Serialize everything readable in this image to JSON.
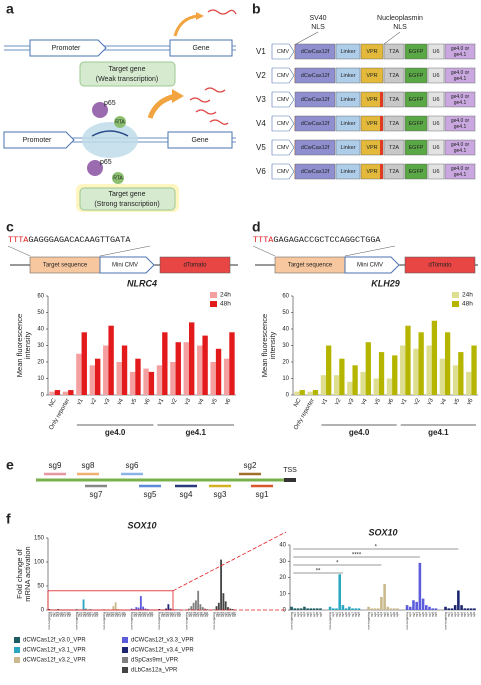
{
  "panel_labels": [
    "a",
    "b",
    "c",
    "d",
    "e",
    "f"
  ],
  "panel_a": {
    "weak": {
      "promoter": "Promoter",
      "gene": "Gene",
      "label": [
        "Target gene",
        "(Weak transcription)"
      ]
    },
    "strong": {
      "promoter": "Promoter",
      "gene": "Gene",
      "p65": "p65",
      "rta": "RTA",
      "label": [
        "Target gene",
        "(Strong transcription)"
      ]
    }
  },
  "panel_b": {
    "nls_1": [
      "SV40",
      "NLS"
    ],
    "nls_2": [
      "Nucleoplasmin",
      "NLS"
    ],
    "parts": [
      "CMV",
      "dCwCas12f",
      "Linker",
      "VPR",
      "T2A",
      "EGFP",
      "U6"
    ],
    "guide": [
      "ge4.0 or",
      "ge4.1"
    ],
    "rows": [
      "V1",
      "V2",
      "V3",
      "V4",
      "V5",
      "V6"
    ]
  },
  "panel_c": {
    "pam": "TTTA",
    "sequence": "GAGGGAGACACAAGTTGATA",
    "construct": [
      "Target sequence",
      "Mini CMV",
      "dTomato"
    ]
  },
  "panel_d": {
    "pam": "TTTA",
    "sequence": "GAGAGACCGCTCCAGGCTGGA",
    "construct": [
      "Target sequence",
      "Mini CMV",
      "dTomato"
    ]
  },
  "panel_e": {
    "guides": [
      {
        "label": "sg9",
        "color": "#e898a0"
      },
      {
        "label": "sg8",
        "color": "#f0b070"
      },
      {
        "label": "sg6",
        "color": "#8ab4e8"
      },
      {
        "label": "sg2",
        "color": "#a0702a"
      },
      {
        "label": "sg7",
        "color": "#888888"
      },
      {
        "label": "sg5",
        "color": "#5b8bd6"
      },
      {
        "label": "sg4",
        "color": "#2a3a7a"
      },
      {
        "label": "sg3",
        "color": "#d4b020"
      },
      {
        "label": "sg1",
        "color": "#d9582a"
      }
    ],
    "tss": "TSS"
  },
  "chart_data": [
    {
      "type": "bar",
      "grouping": "by-category",
      "title": "NLRC4",
      "y_label": [
        "Mean fluorescence",
        "intensity"
      ],
      "categories": [
        "NC",
        "Only reporter",
        "v1",
        "v2",
        "v3",
        "v4",
        "v5",
        "v6",
        "v1",
        "v2",
        "v3",
        "v4",
        "v5",
        "v6"
      ],
      "groups": [
        "ge4.0",
        "ge4.1"
      ],
      "series": [
        {
          "name": "24h",
          "color": "#f4a0a0",
          "values": [
            2,
            2,
            25,
            18,
            30,
            20,
            14,
            16,
            18,
            20,
            32,
            30,
            20,
            22
          ]
        },
        {
          "name": "48h",
          "color": "#e31a1c",
          "values": [
            3,
            3,
            38,
            22,
            42,
            30,
            22,
            14,
            38,
            32,
            44,
            36,
            28,
            38
          ]
        }
      ],
      "ylim": [
        0,
        60
      ],
      "yticks": [
        0,
        10,
        20,
        30,
        40,
        50,
        60
      ],
      "legend": "upper right"
    },
    {
      "type": "bar",
      "grouping": "by-category",
      "title": "KLH29",
      "y_label": [
        "Mean fluorescence",
        "intensity"
      ],
      "categories": [
        "NC",
        "Only reporter",
        "v1",
        "v2",
        "v3",
        "v4",
        "v5",
        "v6",
        "v1",
        "v2",
        "v3",
        "v4",
        "v5",
        "v6"
      ],
      "groups": [
        "ge4.0",
        "ge4.1"
      ],
      "series": [
        {
          "name": "24h",
          "color": "#dede90",
          "values": [
            2,
            2,
            12,
            12,
            8,
            14,
            10,
            10,
            30,
            28,
            30,
            22,
            18,
            14
          ]
        },
        {
          "name": "48h",
          "color": "#b5b500",
          "values": [
            3,
            3,
            30,
            22,
            18,
            32,
            26,
            24,
            42,
            38,
            45,
            38,
            26,
            30
          ]
        }
      ],
      "ylim": [
        0,
        60
      ],
      "yticks": [
        0,
        10,
        20,
        30,
        40,
        50,
        60
      ],
      "legend": "upper right"
    },
    {
      "type": "bar",
      "grouping": "by-series",
      "title": "SOX10",
      "y_label": [
        "Fold change of",
        "mRNA activation"
      ],
      "categories": [
        "non-targeting",
        "sg1",
        "sg2",
        "sg3",
        "sg4",
        "sg5",
        "sg6",
        "sg7",
        "sg8",
        "sg9"
      ],
      "series": [
        {
          "name": "dCWCas12f_v3.0_VPR",
          "color": "#1d5c63",
          "values": [
            2,
            1,
            1,
            1,
            2,
            1,
            1,
            1,
            1,
            1
          ]
        },
        {
          "name": "dCWCas12f_v3.1_VPR",
          "color": "#2aa7c0",
          "values": [
            2,
            1,
            1,
            22,
            3,
            1,
            2,
            1,
            1,
            1
          ]
        },
        {
          "name": "dCWCas12f_v3.2_VPR",
          "color": "#c9b98c",
          "values": [
            2,
            1,
            1,
            1,
            8,
            16,
            2,
            1,
            1,
            1
          ]
        },
        {
          "name": "dCWCas12f_v3.3_VPR",
          "color": "#5b5bdc",
          "values": [
            3,
            2,
            6,
            5,
            29,
            7,
            3,
            2,
            1,
            1
          ]
        },
        {
          "name": "dCWCas12f_v3.4_VPR",
          "color": "#1c2670",
          "values": [
            2,
            1,
            1,
            3,
            12,
            3,
            1,
            1,
            1,
            1
          ]
        },
        {
          "name": "dSpCas9mt_VPR",
          "color": "#7f7f7f",
          "values": [
            1,
            3,
            8,
            15,
            20,
            40,
            12,
            6,
            3,
            2
          ]
        },
        {
          "name": "dLbCas12a_VPR",
          "color": "#444444",
          "values": [
            1,
            8,
            15,
            105,
            35,
            18,
            6,
            3,
            2,
            1
          ]
        }
      ],
      "ylim": [
        0,
        150
      ],
      "yticks": [
        0,
        50,
        100,
        150
      ],
      "legend": "below"
    },
    {
      "type": "bar",
      "grouping": "by-series",
      "title": "SOX10",
      "categories": [
        "non-targeting",
        "sg1",
        "sg2",
        "sg3",
        "sg4",
        "sg5",
        "sg6",
        "sg7",
        "sg8",
        "sg9"
      ],
      "series": [
        {
          "color": "#1d5c63",
          "values": [
            2,
            1,
            1,
            1,
            2,
            1,
            1,
            1,
            1,
            1
          ]
        },
        {
          "color": "#2aa7c0",
          "values": [
            2,
            1,
            1,
            22,
            3,
            1,
            2,
            1,
            1,
            1
          ]
        },
        {
          "color": "#c9b98c",
          "values": [
            2,
            1,
            1,
            1,
            8,
            16,
            2,
            1,
            1,
            1
          ]
        },
        {
          "color": "#5b5bdc",
          "values": [
            3,
            2,
            6,
            5,
            29,
            7,
            3,
            2,
            1,
            1
          ]
        },
        {
          "color": "#1c2670",
          "values": [
            2,
            1,
            1,
            3,
            12,
            3,
            1,
            1,
            1,
            1
          ]
        }
      ],
      "ylim": [
        0,
        40
      ],
      "yticks": [
        0,
        10,
        20,
        30,
        40
      ],
      "annotations": [
        "*",
        "****",
        "*",
        "**"
      ]
    }
  ]
}
